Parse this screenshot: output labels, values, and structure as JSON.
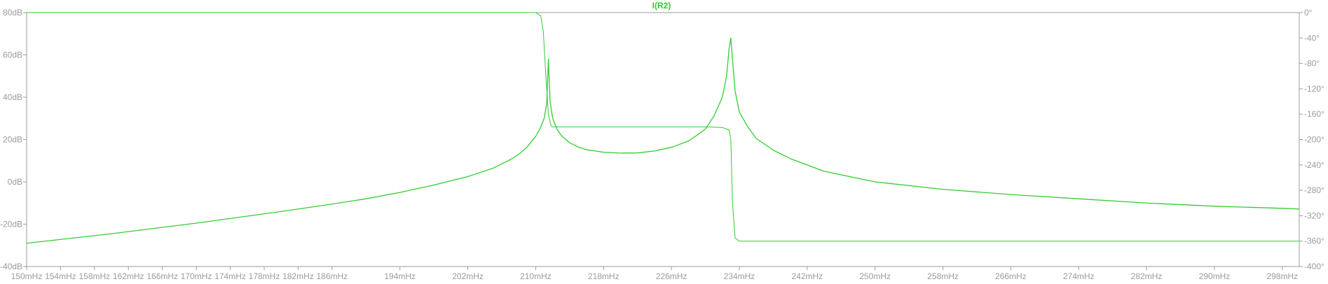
{
  "chart_data": {
    "type": "line",
    "title": "",
    "trace_label": "I(R2)",
    "x_unit": "mHz",
    "x_range": [
      150,
      300
    ],
    "y_left_range": [
      -40,
      80
    ],
    "y_right_range": [
      -400,
      0
    ],
    "x_ticks": [
      "150mHz",
      "154mHz",
      "158mHz",
      "162mHz",
      "166mHz",
      "170mHz",
      "174mHz",
      "178mHz",
      "182mHz",
      "186mHz",
      "194mHz",
      "202mHz",
      "210mHz",
      "218mHz",
      "226mHz",
      "234mHz",
      "242mHz",
      "250mHz",
      "258mHz",
      "266mHz",
      "274mHz",
      "282mHz",
      "290mHz",
      "298mHz"
    ],
    "x_tick_values": [
      150,
      154,
      158,
      162,
      166,
      170,
      174,
      178,
      182,
      186,
      194,
      202,
      210,
      218,
      226,
      234,
      242,
      250,
      258,
      266,
      274,
      282,
      290,
      298
    ],
    "y_left_ticks": [
      "80dB",
      "60dB",
      "40dB",
      "20dB",
      "0dB",
      "-20dB",
      "-40dB"
    ],
    "y_left_tick_values": [
      80,
      60,
      40,
      20,
      0,
      -20,
      -40
    ],
    "y_right_ticks": [
      "0°",
      "-40°",
      "-80°",
      "-120°",
      "-160°",
      "-200°",
      "-240°",
      "-280°",
      "-320°",
      "-360°",
      "-400°"
    ],
    "y_right_tick_values": [
      0,
      -40,
      -80,
      -120,
      -160,
      -200,
      -240,
      -280,
      -320,
      -360,
      -400
    ],
    "colors": {
      "trace": "#33cc33",
      "trace_label": "#33cc33",
      "frame": "#9b9b9b",
      "ticks": "#9b9b9b",
      "background": "#ffffff"
    },
    "series": [
      {
        "axis": "left",
        "unit": "dB",
        "x": [
          150,
          160,
          170,
          180,
          186,
          190,
          194,
          198,
          202,
          205,
          207,
          208,
          209,
          210,
          210.5,
          211,
          211.3,
          211.5,
          211.7,
          212,
          212.5,
          213,
          214,
          215,
          216,
          218,
          220,
          222,
          224,
          226,
          228,
          229,
          230,
          231,
          232,
          232.5,
          232.8,
          233,
          233.2,
          233.5,
          234,
          235,
          236,
          238,
          240,
          244,
          250,
          258,
          266,
          274,
          282,
          290,
          298,
          300
        ],
        "y": [
          -29,
          -24.5,
          -19.5,
          -14,
          -10.5,
          -8,
          -5,
          -1.5,
          2.5,
          6.5,
          10.5,
          13,
          16.5,
          21.5,
          25,
          30,
          37,
          58,
          38,
          30,
          25,
          22,
          18.5,
          16.5,
          15.2,
          14,
          13.6,
          13.7,
          14.6,
          16.3,
          19.3,
          22,
          25,
          31,
          40,
          50,
          63,
          68,
          58,
          43,
          33,
          26,
          20.5,
          15,
          11,
          5,
          0,
          -3.5,
          -6,
          -8,
          -10,
          -11.5,
          -12.5,
          -12.8
        ]
      },
      {
        "axis": "right",
        "unit": "deg",
        "x": [
          150,
          180,
          200,
          210,
          210.6,
          210.9,
          211.2,
          211.5,
          211.8,
          212,
          214,
          220,
          226,
          230,
          232,
          232.8,
          233,
          233.2,
          233.5,
          234,
          240,
          260,
          280,
          300
        ],
        "y": [
          0,
          0,
          0,
          0,
          -5,
          -30,
          -100,
          -160,
          -178,
          -180,
          -180,
          -180,
          -180,
          -180,
          -181,
          -185,
          -200,
          -300,
          -355,
          -360,
          -360,
          -360,
          -360,
          -360
        ]
      }
    ]
  }
}
